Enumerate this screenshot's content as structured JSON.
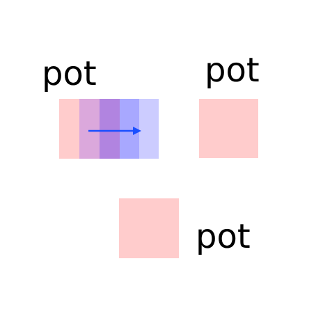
{
  "labels": {
    "top_left": "pot",
    "top_right": "pot",
    "bottom": "pot"
  },
  "colors": {
    "background": "#ffffff",
    "square_fill": "#ffcccc",
    "arrow": "#1a4fff",
    "strips": [
      "#ffcccc",
      "#dba8dc",
      "#b184e0",
      "#a8a8ff",
      "#ccccff"
    ]
  },
  "icons": {
    "arrow": "right-arrow-icon"
  }
}
